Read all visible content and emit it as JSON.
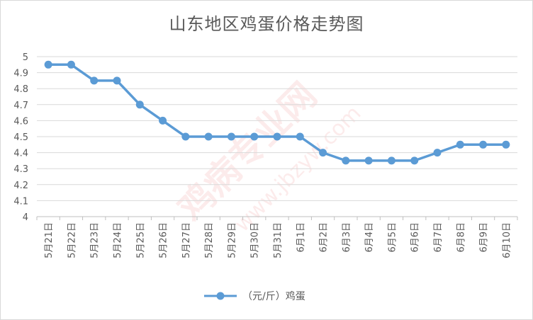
{
  "chart_data": {
    "type": "line",
    "title": "山东地区鸡蛋价格走势图",
    "categories": [
      "5月21日",
      "5月22日",
      "5月23日",
      "5月24日",
      "5月25日",
      "5月26日",
      "5月27日",
      "5月28日",
      "5月29日",
      "5月30日",
      "5月31日",
      "6月1日",
      "6月2日",
      "6月3日",
      "6月4日",
      "6月5日",
      "6月6日",
      "6月7日",
      "6月8日",
      "6月9日",
      "6月10日"
    ],
    "series": [
      {
        "name": "（元/斤）鸡蛋",
        "values": [
          4.95,
          4.95,
          4.85,
          4.85,
          4.7,
          4.6,
          4.5,
          4.5,
          4.5,
          4.5,
          4.5,
          4.5,
          4.4,
          4.35,
          4.35,
          4.35,
          4.35,
          4.4,
          4.45,
          4.45,
          4.45
        ],
        "color": "#5b9bd5"
      }
    ],
    "ylim": [
      4,
      5
    ],
    "yticks": [
      "4",
      "4.1",
      "4.2",
      "4.3",
      "4.4",
      "4.5",
      "4.6",
      "4.7",
      "4.8",
      "4.9",
      "5"
    ],
    "grid": true,
    "legend": "bottom",
    "watermark": "鸡病专业网 www.jbzyw.com"
  }
}
